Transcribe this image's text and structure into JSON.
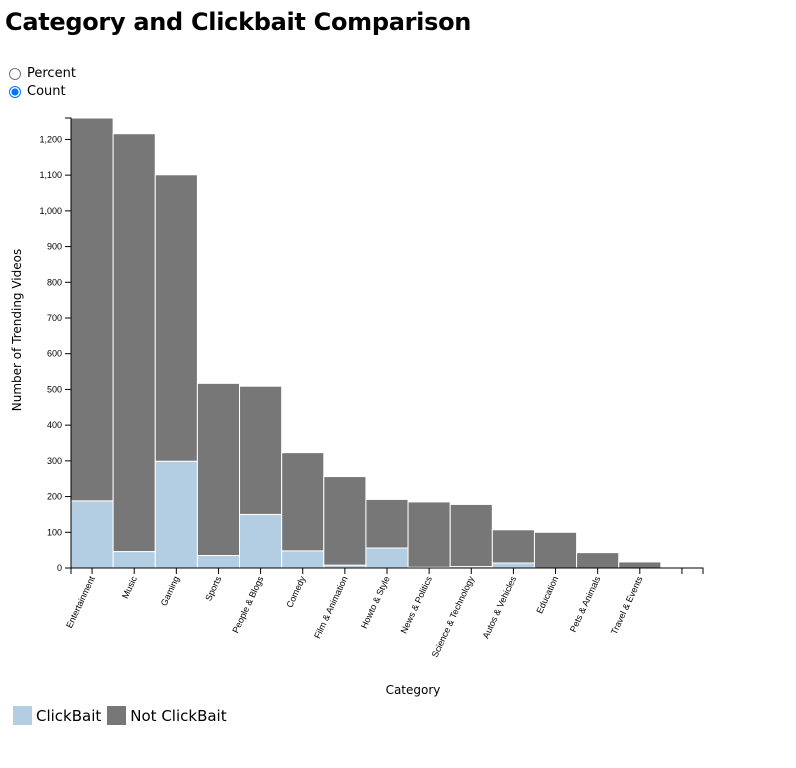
{
  "title": "Category and Clickbait Comparison",
  "controls": {
    "options": [
      {
        "label": "Percent",
        "checked": false
      },
      {
        "label": "Count",
        "checked": true
      }
    ]
  },
  "legend": [
    {
      "label": "ClickBait",
      "color": "#b3cde3"
    },
    {
      "label": "Not ClickBait",
      "color": "#777777"
    }
  ],
  "chart_data": {
    "type": "bar",
    "stacked": true,
    "xlabel": "Category",
    "ylabel": "Number of Trending Videos",
    "ylim": [
      0,
      1260
    ],
    "yticks": [
      0,
      100,
      200,
      300,
      400,
      500,
      600,
      700,
      800,
      900,
      1000,
      1100,
      1200
    ],
    "ytick_labels": [
      "0",
      "100",
      "200",
      "300",
      "400",
      "500",
      "600",
      "700",
      "800",
      "900",
      "1,000",
      "1,100",
      "1,200"
    ],
    "categories": [
      "Entertainment",
      "Music",
      "Gaming",
      "Sports",
      "People & Blogs",
      "Comedy",
      "Film & Animation",
      "Howto & Style",
      "News & Politics",
      "Science & Technology",
      "Autos & Vehicles",
      "Education",
      "Pets & Animals",
      "Travel & Events",
      ""
    ],
    "series": [
      {
        "name": "ClickBait",
        "color": "#b3cde3",
        "values": [
          188,
          46,
          299,
          35,
          150,
          48,
          8,
          56,
          2,
          4,
          14,
          0,
          0,
          0,
          0
        ]
      },
      {
        "name": "Not ClickBait",
        "color": "#777777",
        "values": [
          1072,
          1170,
          802,
          482,
          359,
          275,
          248,
          136,
          183,
          174,
          93,
          100,
          43,
          17,
          0
        ]
      }
    ]
  }
}
